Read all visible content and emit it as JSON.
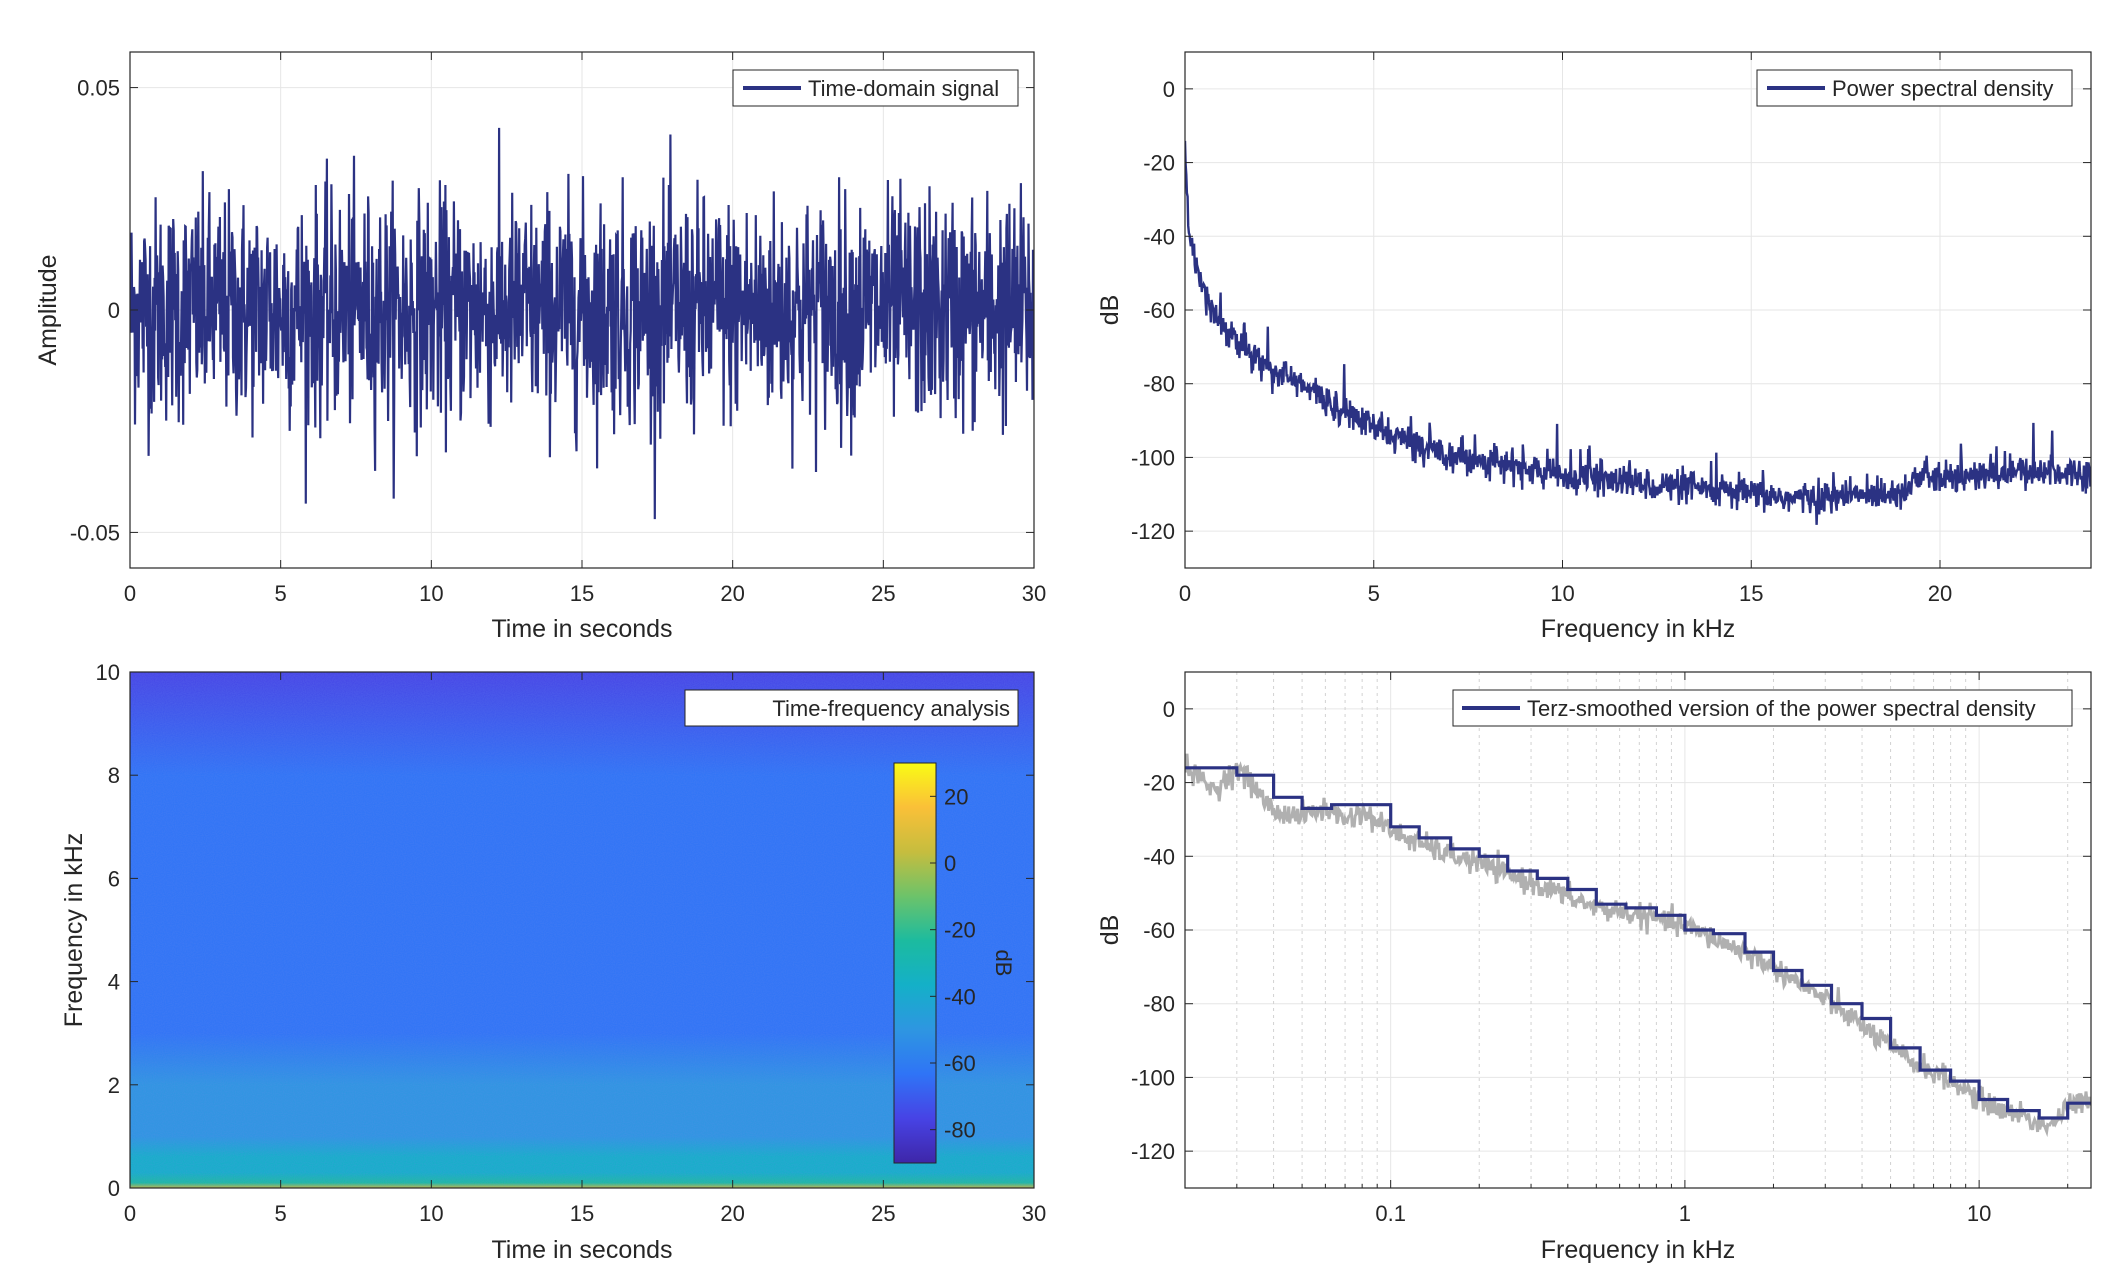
{
  "colors": {
    "series": "#2b3283",
    "raw_gray": "#b0b0b0",
    "grid": "#e6e6e6",
    "axis": "#262626",
    "colormap": [
      "#3e26a8",
      "#4743e5",
      "#2f74f6",
      "#2e96e1",
      "#14b0c8",
      "#1cbb9f",
      "#6cc36a",
      "#c6bd3e",
      "#fac038",
      "#f9fb15"
    ]
  },
  "chart_data": [
    {
      "type": "line",
      "legend": "Time-domain signal",
      "xlabel": "Time in seconds",
      "ylabel": "Amplitude",
      "xlim": [
        0,
        30
      ],
      "ylim": [
        -0.058,
        0.058
      ],
      "xticks": [
        0,
        5,
        10,
        15,
        20,
        25,
        30
      ],
      "yticks": [
        -0.05,
        0,
        0.05
      ],
      "ytick_labels": [
        "-0.05",
        "0",
        "0.05"
      ],
      "legend_location": "top-right",
      "grid": true
    },
    {
      "type": "line",
      "legend": "Power spectral density",
      "xlabel": "Frequency in kHz",
      "ylabel": "dB",
      "xlim": [
        0,
        24
      ],
      "ylim": [
        -130,
        10
      ],
      "xticks": [
        0,
        5,
        10,
        15,
        20
      ],
      "yticks": [
        0,
        -20,
        -40,
        -60,
        -80,
        -100,
        -120
      ],
      "legend_location": "top-right",
      "grid": true,
      "envelope": {
        "x": [
          0,
          0.1,
          0.3,
          0.6,
          1,
          1.5,
          2,
          3,
          4,
          5,
          6,
          7,
          8,
          9,
          10,
          11,
          12,
          13,
          14,
          15,
          16,
          17,
          18,
          19,
          19.5,
          20,
          21,
          22,
          23,
          24
        ],
        "y": [
          -15,
          -38,
          -48,
          -57,
          -64,
          -70,
          -74,
          -80,
          -86,
          -92,
          -96,
          -99,
          -101,
          -103,
          -105,
          -106,
          -107,
          -108,
          -109,
          -110,
          -111,
          -111,
          -110,
          -109,
          -105,
          -106,
          -105,
          -104,
          -104,
          -104
        ]
      }
    },
    {
      "type": "heatmap",
      "legend": "Time-frequency analysis",
      "xlabel": "Time in seconds",
      "ylabel": "Frequency in kHz",
      "xlim": [
        0,
        30
      ],
      "ylim": [
        0,
        10
      ],
      "xticks": [
        0,
        5,
        10,
        15,
        20,
        25,
        30
      ],
      "yticks": [
        0,
        2,
        4,
        6,
        8,
        10
      ],
      "legend_location": "top-right",
      "colorbar": {
        "label": "dB",
        "range": [
          -90,
          30
        ],
        "ticks": [
          20,
          0,
          -20,
          -40,
          -60,
          -80
        ]
      },
      "level_profile": {
        "freq_khz": [
          0,
          0.1,
          0.3,
          0.6,
          1,
          2,
          3,
          4,
          6,
          8,
          10
        ],
        "db": [
          5,
          -18,
          -32,
          -40,
          -45,
          -52,
          -57,
          -60,
          -65,
          -70,
          -72
        ]
      }
    },
    {
      "type": "line",
      "legend": "Terz-smoothed version of the power spectral density",
      "xlabel": "Frequency in kHz",
      "ylabel": "dB",
      "xscale": "log",
      "xlim": [
        0.02,
        24
      ],
      "ylim": [
        -130,
        10
      ],
      "xticks": [
        0.1,
        1,
        10
      ],
      "xtick_labels": [
        "0.1",
        "1",
        "10"
      ],
      "yticks": [
        0,
        -20,
        -40,
        -60,
        -80,
        -100,
        -120
      ],
      "legend_location": "top-right",
      "grid": true,
      "series": [
        {
          "name": "Terz-smoothed version of the power spectral density",
          "x": [
            0.02,
            0.03,
            0.04,
            0.05,
            0.063,
            0.08,
            0.1,
            0.125,
            0.16,
            0.2,
            0.25,
            0.315,
            0.4,
            0.5,
            0.63,
            0.8,
            1,
            1.25,
            1.6,
            2,
            2.5,
            3.15,
            4,
            5,
            6.3,
            8,
            10,
            12.5,
            16,
            20,
            24
          ],
          "y": [
            -16,
            -18,
            -24,
            -27,
            -26,
            -26,
            -32,
            -35,
            -38,
            -40,
            -44,
            -46,
            -49,
            -53,
            -54,
            -56,
            -60,
            -61,
            -66,
            -71,
            -75,
            -80,
            -84,
            -92,
            -98,
            -101,
            -106,
            -109,
            -111,
            -107,
            -107
          ]
        }
      ],
      "raw": {
        "x": [
          0.02,
          0.025,
          0.03,
          0.04,
          0.05,
          0.06,
          0.07,
          0.08,
          0.1,
          0.12,
          0.15,
          0.2,
          0.25,
          0.3,
          0.4,
          0.5,
          0.6,
          0.8,
          1,
          1.3,
          1.6,
          2,
          2.5,
          3,
          4,
          5,
          6,
          8,
          10,
          12,
          14,
          16,
          18,
          20,
          22,
          24
        ],
        "y": [
          -16,
          -22,
          -16,
          -28,
          -29,
          -27,
          -30,
          -28,
          -33,
          -36,
          -39,
          -42,
          -45,
          -47,
          -51,
          -54,
          -55,
          -57,
          -59,
          -63,
          -66,
          -70,
          -75,
          -79,
          -86,
          -92,
          -96,
          -101,
          -106,
          -109,
          -110,
          -113,
          -112,
          -108,
          -107,
          -107
        ]
      }
    }
  ]
}
